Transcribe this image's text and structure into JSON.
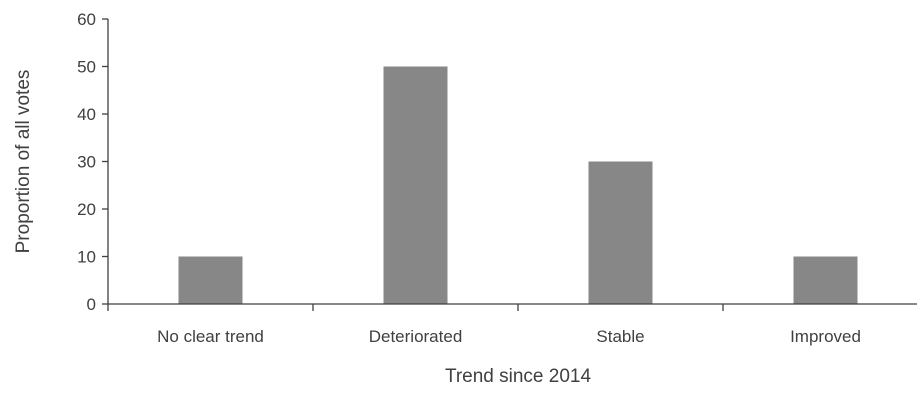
{
  "chart_data": {
    "type": "bar",
    "title": "",
    "xlabel": "Trend since 2014",
    "ylabel": "Proportion of all votes",
    "categories": [
      "No clear trend",
      "Deteriorated",
      "Stable",
      "Improved"
    ],
    "values": [
      10,
      50,
      30,
      10
    ],
    "ylim": [
      0,
      60
    ],
    "yticks": [
      "0",
      "10",
      "20",
      "30",
      "40",
      "50",
      "60"
    ],
    "grid": false,
    "legend": "none",
    "colors": {
      "bar": "#878787",
      "axis": "#404040",
      "text": "#404040"
    }
  }
}
